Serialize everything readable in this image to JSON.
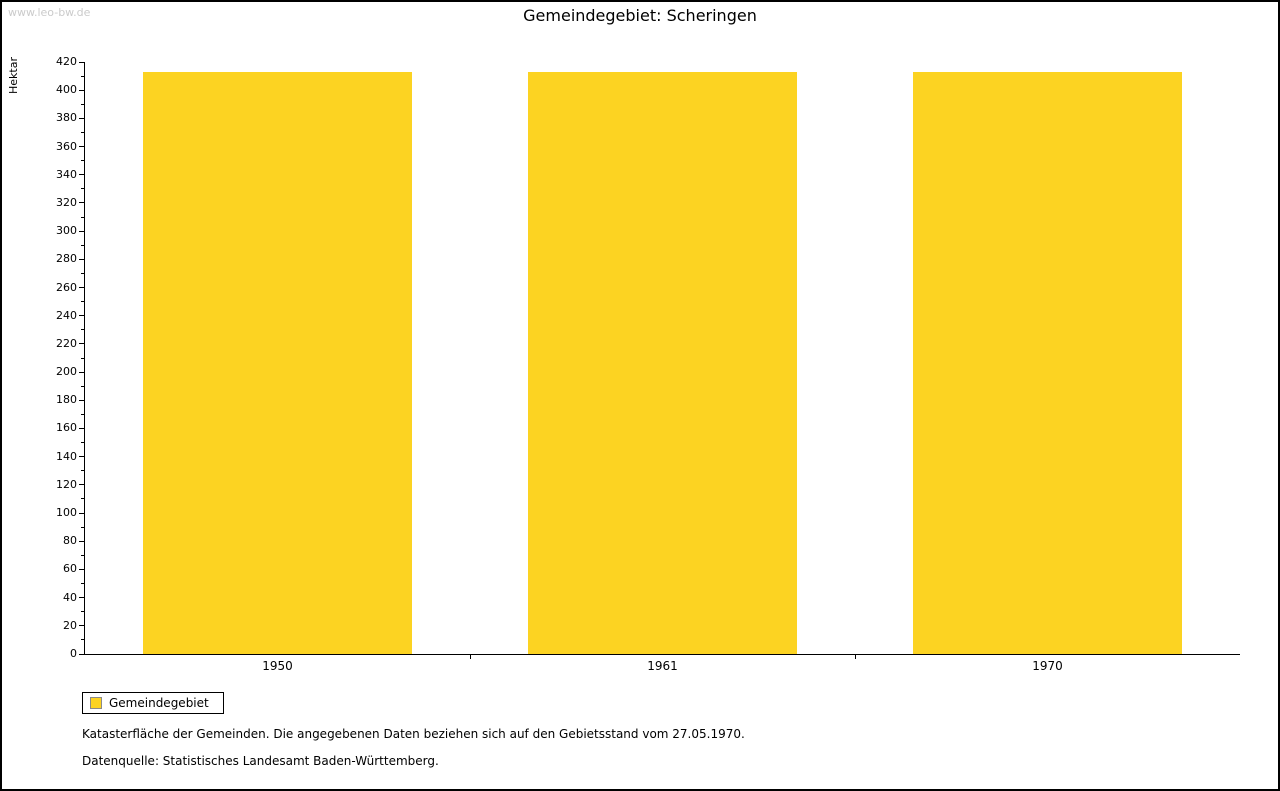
{
  "page": {
    "watermark": "www.leo-bw.de",
    "title": "Gemeindegebiet: Scheringen"
  },
  "chart_data": {
    "type": "bar",
    "title": "Gemeindegebiet: Scheringen",
    "categories": [
      "1950",
      "1961",
      "1970"
    ],
    "series": [
      {
        "name": "Gemeindegebiet",
        "values": [
          413,
          413,
          413
        ]
      }
    ],
    "xlabel": "",
    "ylabel": "Hektar",
    "ylim": [
      0,
      420
    ],
    "y_major_step": 20,
    "y_minor_step": 10,
    "bar_color": "#FCD322",
    "grid": false,
    "legend_position": "bottom-left-below-chart"
  },
  "legend": {
    "items": [
      {
        "label": "Gemeindegebiet",
        "color": "#FCD322"
      }
    ]
  },
  "notes": {
    "line1": "Katasterfläche der Gemeinden. Die angegebenen Daten beziehen sich auf den Gebietsstand vom 27.05.1970.",
    "line2": "Datenquelle: Statistisches Landesamt Baden-Württemberg."
  }
}
